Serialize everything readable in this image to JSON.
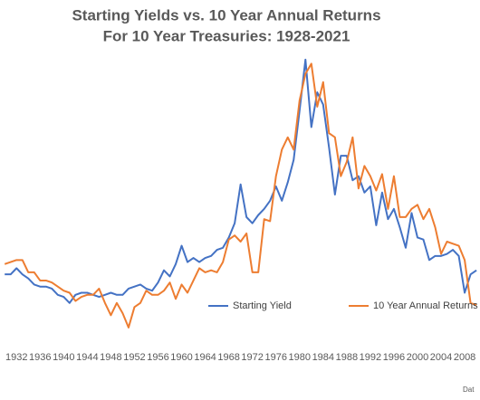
{
  "chart_data": {
    "type": "line",
    "title": "Starting Yields vs. 10 Year Annual Returns",
    "subtitle": "For 10 Year Treasuries: 1928-2021",
    "source": "Dat",
    "x": [
      1930,
      1931,
      1932,
      1933,
      1934,
      1935,
      1936,
      1937,
      1938,
      1939,
      1940,
      1941,
      1942,
      1943,
      1944,
      1945,
      1946,
      1947,
      1948,
      1949,
      1950,
      1951,
      1952,
      1953,
      1954,
      1955,
      1956,
      1957,
      1958,
      1959,
      1960,
      1961,
      1962,
      1963,
      1964,
      1965,
      1966,
      1967,
      1968,
      1969,
      1970,
      1971,
      1972,
      1973,
      1974,
      1975,
      1976,
      1977,
      1978,
      1979,
      1980,
      1981,
      1982,
      1983,
      1984,
      1985,
      1986,
      1987,
      1988,
      1989,
      1990,
      1991,
      1992,
      1993,
      1994,
      1995,
      1996,
      1997,
      1998,
      1999,
      2000,
      2001,
      2002,
      2003,
      2004,
      2005,
      2006,
      2007,
      2008,
      2009,
      2010
    ],
    "series": [
      {
        "name": "Starting Yield",
        "color": "#4472c4",
        "values": [
          3.4,
          3.4,
          3.7,
          3.4,
          3.2,
          2.9,
          2.8,
          2.8,
          2.7,
          2.4,
          2.3,
          2.0,
          2.4,
          2.5,
          2.5,
          2.4,
          2.3,
          2.4,
          2.5,
          2.4,
          2.4,
          2.7,
          2.8,
          2.9,
          2.7,
          2.6,
          3.0,
          3.6,
          3.3,
          3.9,
          4.8,
          4.0,
          4.2,
          4.0,
          4.2,
          4.3,
          4.6,
          4.7,
          5.2,
          5.9,
          7.8,
          6.2,
          5.9,
          6.3,
          6.6,
          7.0,
          7.7,
          7.0,
          7.9,
          9.0,
          11.4,
          13.9,
          10.6,
          12.3,
          11.7,
          9.6,
          7.3,
          9.2,
          9.2,
          8.0,
          8.2,
          7.4,
          7.7,
          5.8,
          7.4,
          6.1,
          6.6,
          5.7,
          4.7,
          6.4,
          5.2,
          5.1,
          4.1,
          4.3,
          4.3,
          4.4,
          4.6,
          4.3,
          2.5,
          3.4,
          3.6
        ]
      },
      {
        "name": "10 Year Annual Returns",
        "color": "#ed7d31",
        "values": [
          3.9,
          4.0,
          4.1,
          4.1,
          3.5,
          3.5,
          3.1,
          3.1,
          3.0,
          2.8,
          2.6,
          2.5,
          2.1,
          2.3,
          2.4,
          2.4,
          2.7,
          2.0,
          1.4,
          2.0,
          1.5,
          0.8,
          1.8,
          2.0,
          2.6,
          2.4,
          2.4,
          2.6,
          3.0,
          2.2,
          2.9,
          2.5,
          3.1,
          3.7,
          3.5,
          3.6,
          3.5,
          4.0,
          5.1,
          5.3,
          5.0,
          5.4,
          3.5,
          3.5,
          6.1,
          6.0,
          8.2,
          9.5,
          10.1,
          9.5,
          11.9,
          13.2,
          13.7,
          11.6,
          12.8,
          10.3,
          10.1,
          8.2,
          8.9,
          10.1,
          7.6,
          8.7,
          8.2,
          7.5,
          8.3,
          6.6,
          8.2,
          6.2,
          6.2,
          6.6,
          6.8,
          6.1,
          6.6,
          5.7,
          4.4,
          5.0,
          4.9,
          4.8,
          4.1,
          2.0,
          1.9
        ]
      }
    ],
    "xlim": [
      1929.2,
      2010.6
    ],
    "ylim": [
      0,
      15
    ],
    "xticks": [
      1932,
      1936,
      1940,
      1944,
      1948,
      1952,
      1956,
      1960,
      1964,
      1968,
      1972,
      1976,
      1980,
      1984,
      1988,
      1992,
      1996,
      2000,
      2004,
      2008
    ],
    "grid": false
  }
}
